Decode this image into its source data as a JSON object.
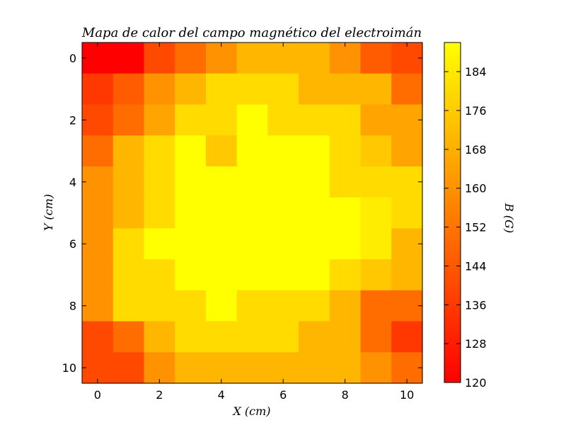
{
  "chart_data": {
    "type": "heatmap",
    "title": "Mapa de calor del campo magnético del electroimán",
    "xlabel": "X (cm)",
    "ylabel": "Y (cm)",
    "colorbar_label": "B (G)",
    "colormap": "autumn",
    "colormap_colors": [
      "#ff0000",
      "#ffff00"
    ],
    "x_ticks": [
      0,
      2,
      4,
      6,
      8,
      10
    ],
    "y_ticks": [
      0,
      2,
      4,
      6,
      8,
      10
    ],
    "x_ticklabels": [
      "0",
      "2",
      "4",
      "6",
      "8",
      "10"
    ],
    "y_ticklabels": [
      "0",
      "2",
      "4",
      "6",
      "8",
      "10"
    ],
    "x_range": [
      -0.5,
      10.5
    ],
    "y_range": [
      -0.5,
      10.5
    ],
    "colorbar_ticks": [
      120,
      128,
      136,
      144,
      152,
      160,
      168,
      176,
      184
    ],
    "colorbar_ticklabels": [
      "120",
      "128",
      "136",
      "144",
      "152",
      "160",
      "168",
      "176",
      "184"
    ],
    "vmin": 120,
    "vmax": 190,
    "values": [
      [
        120,
        120,
        140,
        150,
        160,
        170,
        170,
        170,
        160,
        145,
        140
      ],
      [
        135,
        145,
        160,
        170,
        180,
        180,
        180,
        170,
        170,
        170,
        150
      ],
      [
        140,
        150,
        165,
        180,
        180,
        190,
        180,
        180,
        180,
        165,
        165
      ],
      [
        150,
        170,
        180,
        190,
        175,
        190,
        190,
        190,
        180,
        175,
        165
      ],
      [
        160,
        170,
        180,
        190,
        190,
        190,
        190,
        190,
        180,
        180,
        180
      ],
      [
        160,
        170,
        180,
        190,
        190,
        190,
        190,
        190,
        190,
        185,
        180
      ],
      [
        160,
        180,
        190,
        190,
        190,
        190,
        190,
        190,
        190,
        185,
        170
      ],
      [
        160,
        180,
        180,
        190,
        190,
        190,
        190,
        190,
        180,
        175,
        170
      ],
      [
        160,
        180,
        180,
        180,
        190,
        180,
        180,
        180,
        170,
        150,
        150
      ],
      [
        140,
        150,
        170,
        180,
        180,
        180,
        180,
        170,
        170,
        150,
        135
      ],
      [
        140,
        140,
        160,
        170,
        170,
        170,
        170,
        170,
        170,
        160,
        150
      ]
    ]
  }
}
